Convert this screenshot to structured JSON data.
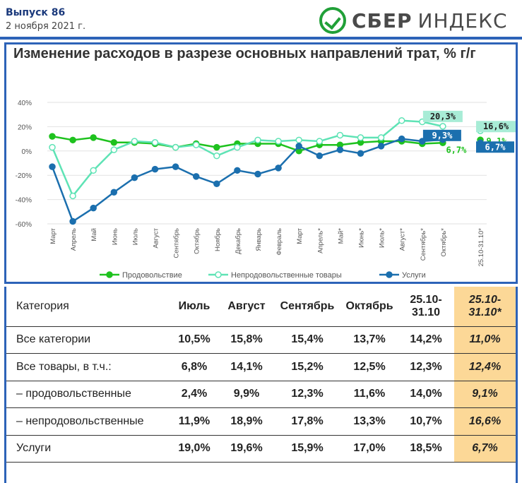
{
  "header": {
    "issue": "Выпуск 86",
    "date": "2 ноября 2021 г.",
    "brand_bold": "СБЕР",
    "brand_light": "ИНДЕКС"
  },
  "chart_data": {
    "type": "line",
    "title": "Изменение расходов в разрезе основных направлений трат, % г/г",
    "categories": [
      "Март",
      "Апрель",
      "Май",
      "Июнь",
      "Июль",
      "Август",
      "Сентябрь",
      "Октябрь",
      "Ноябрь",
      "Декабрь",
      "Январь",
      "Февраль",
      "Март",
      "Апрель*",
      "Май*",
      "Июнь*",
      "Июль*",
      "Август*",
      "Сентябрь*",
      "Октябрь*"
    ],
    "extra_category": "25.10-31.10*",
    "y_ticks": [
      "40%",
      "20%",
      "0%",
      "-20%",
      "-40%",
      "-60%"
    ],
    "ylim": [
      -60,
      40
    ],
    "grid": true,
    "legend_position": "bottom",
    "series": [
      {
        "name": "Продовольствие",
        "color": "#1ec21e",
        "marker": "filled",
        "values": [
          12,
          9,
          11,
          7,
          7,
          6,
          3,
          6,
          3,
          6,
          6,
          6,
          0,
          5,
          5,
          7,
          8,
          8,
          6,
          6.7
        ],
        "extra_value": 9.1
      },
      {
        "name": "Непродовольственные товары",
        "color": "#5ee3b5",
        "marker": "hollow",
        "values": [
          3,
          -37,
          -16,
          1,
          8,
          7,
          3,
          5,
          -4,
          3,
          9,
          8,
          9,
          8,
          13,
          11,
          11,
          25,
          24,
          20.3
        ],
        "extra_value": 16.6
      },
      {
        "name": "Услуги",
        "color": "#1b6fae",
        "marker": "filled",
        "values": [
          -13,
          -58,
          -47,
          -34,
          -22,
          -15,
          -13,
          -21,
          -27,
          -16,
          -19,
          -14,
          4,
          -4,
          1,
          -2,
          4,
          10,
          8,
          9.3
        ],
        "extra_value": 6.7
      }
    ],
    "annotations": {
      "nonfood_last": "20,3%",
      "services_last": "9,3%",
      "food_last": "6,7%",
      "nonfood_extra": "16,6%",
      "food_extra": "9,1%",
      "services_extra": "6,7%"
    }
  },
  "table": {
    "headers": [
      "Категория",
      "Июль",
      "Август",
      "Сентябрь",
      "Октябрь",
      "25.10-31.10",
      "25.10-31.10*"
    ],
    "rows": [
      [
        "Все категории",
        "10,5%",
        "15,8%",
        "15,4%",
        "13,7%",
        "14,2%",
        "11,0%"
      ],
      [
        "Все товары, в т.ч.:",
        "6,8%",
        "14,1%",
        "15,2%",
        "12,5%",
        "12,3%",
        "12,4%"
      ],
      [
        "– продовольственные",
        "2,4%",
        "9,9%",
        "12,3%",
        "11,6%",
        "14,0%",
        "9,1%"
      ],
      [
        "– непродовольственные",
        "11,9%",
        "18,9%",
        "17,8%",
        "13,3%",
        "10,7%",
        "16,6%"
      ],
      [
        "Услуги",
        "19,0%",
        "19,6%",
        "15,9%",
        "17,0%",
        "18,5%",
        "6,7%"
      ]
    ]
  }
}
